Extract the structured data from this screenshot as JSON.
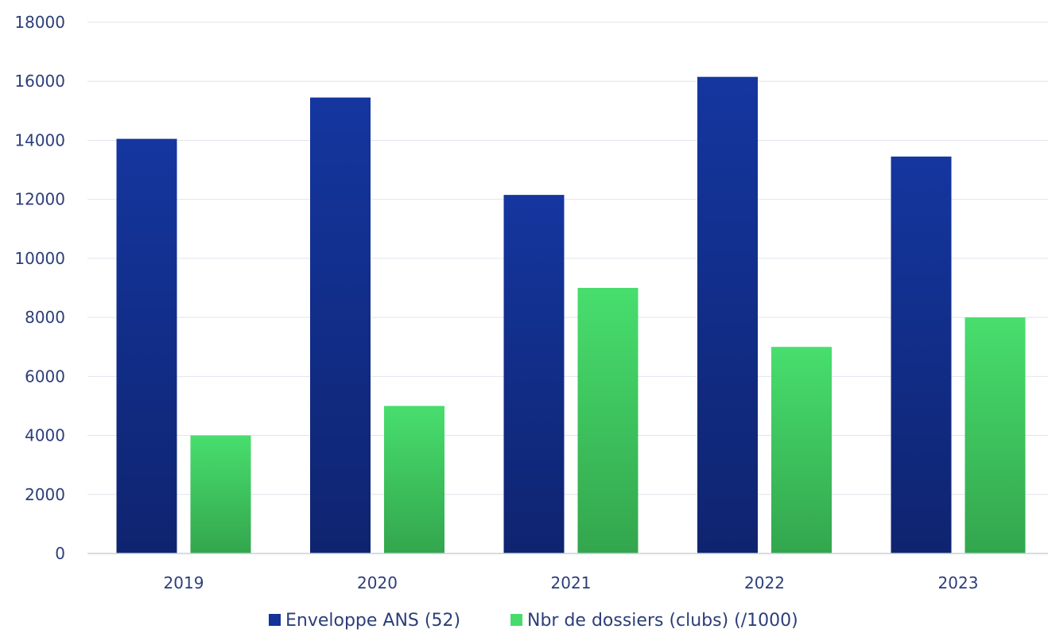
{
  "chart_data": {
    "type": "bar",
    "categories": [
      "2019",
      "2020",
      "2021",
      "2022",
      "2023"
    ],
    "series": [
      {
        "name": "Enveloppe ANS (52)",
        "values": [
          14050,
          15450,
          12150,
          16150,
          13450
        ],
        "color": "#14339a"
      },
      {
        "name": "Nbr de dossiers (clubs) (/1000)",
        "values": [
          4000,
          5000,
          9000,
          7000,
          8000
        ],
        "color": "#46dc6c"
      }
    ],
    "ylim": [
      0,
      18000
    ],
    "yticks": [
      "0",
      "2000",
      "4000",
      "6000",
      "8000",
      "10000",
      "12000",
      "14000",
      "16000",
      "18000"
    ],
    "grid": true,
    "legend": "bottom-center"
  }
}
